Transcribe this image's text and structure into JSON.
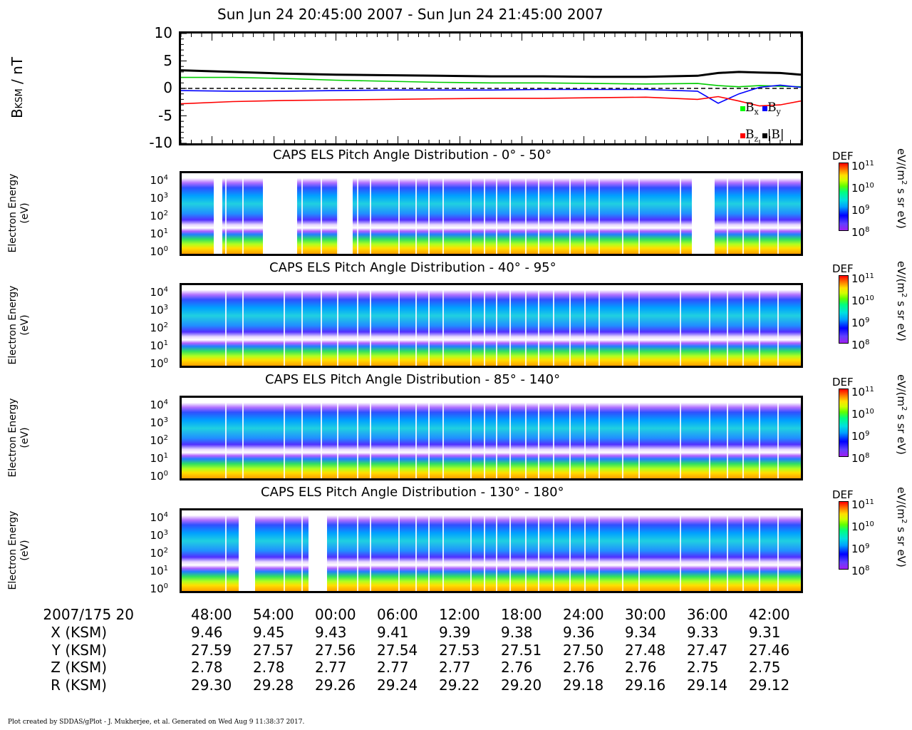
{
  "chart_data": {
    "time_range_title": "Sun Jun 24 20:45:00 2007 - Sun Jun 24 21:45:00 2007",
    "mag_panel": {
      "type": "line",
      "ylabel_main": "B",
      "ylabel_sub": "KSM",
      "ylabel_unit": " / nT",
      "ylim": [
        -10,
        10
      ],
      "y_ticks": [
        "10",
        "5",
        "0",
        "-5",
        "-10"
      ],
      "y_tick_values": [
        10,
        5,
        0,
        -5,
        -10
      ],
      "x_minutes": [
        0,
        5,
        10,
        15,
        20,
        25,
        30,
        35,
        40,
        45,
        50,
        52,
        54,
        56,
        58,
        60
      ],
      "series": [
        {
          "name": "|B|",
          "color": "#000000",
          "values": [
            3.3,
            3.0,
            2.7,
            2.5,
            2.4,
            2.3,
            2.2,
            2.2,
            2.1,
            2.1,
            2.3,
            2.8,
            3.0,
            2.9,
            2.8,
            2.5
          ]
        },
        {
          "name": "B_x",
          "color": "#00cc00",
          "values": [
            2.0,
            2.0,
            1.8,
            1.5,
            1.3,
            1.1,
            1.0,
            1.0,
            0.9,
            0.8,
            0.9,
            0.5,
            0.3,
            0.5,
            0.4,
            0.3
          ]
        },
        {
          "name": "B_y",
          "color": "#0000ff",
          "values": [
            -0.4,
            -0.5,
            -0.5,
            -0.4,
            -0.3,
            -0.3,
            -0.3,
            -0.2,
            -0.2,
            -0.2,
            -0.5,
            -2.7,
            -1.0,
            0.2,
            0.6,
            0.2
          ]
        },
        {
          "name": "B_z",
          "color": "#ff0000",
          "values": [
            -2.8,
            -2.4,
            -2.2,
            -2.1,
            -2.0,
            -1.9,
            -1.8,
            -1.8,
            -1.7,
            -1.6,
            -2.0,
            -1.5,
            -2.3,
            -3.2,
            -3.0,
            -2.3
          ]
        }
      ],
      "zero_line": "dashed",
      "legend": [
        {
          "label": "B",
          "sub": "x",
          "color": "#00ff00"
        },
        {
          "label": "B",
          "sub": "y",
          "color": "#0000ff"
        },
        {
          "label": "B",
          "sub": "z",
          "color": "#ff0000"
        },
        {
          "label": "|B|",
          "sub": "",
          "color": "#000000"
        }
      ]
    },
    "spectrograms": [
      {
        "type": "heatmap",
        "title": "CAPS ELS Pitch Angle Distribution - 0° - 50°",
        "ylabel": "Electron Energy",
        "yunit": "(eV)"
      },
      {
        "type": "heatmap",
        "title": "CAPS ELS Pitch Angle Distribution - 40° - 95°",
        "ylabel": "Electron Energy",
        "yunit": "(eV)"
      },
      {
        "type": "heatmap",
        "title": "CAPS ELS Pitch Angle Distribution - 85° - 140°",
        "ylabel": "Electron Energy",
        "yunit": "(eV)"
      },
      {
        "type": "heatmap",
        "title": "CAPS ELS Pitch Angle Distribution - 130° - 180°",
        "ylabel": "Electron Energy",
        "yunit": "(eV)"
      }
    ],
    "energy_ticks": [
      {
        "base": "10",
        "exp": "4"
      },
      {
        "base": "10",
        "exp": "3"
      },
      {
        "base": "10",
        "exp": "2"
      },
      {
        "base": "10",
        "exp": "1"
      },
      {
        "base": "10",
        "exp": "0"
      }
    ],
    "colorbar": {
      "label": "DEF",
      "unit_pre": "eV/(m",
      "unit_exp": "2",
      "unit_post": " s sr eV)",
      "ticks": [
        {
          "base": "10",
          "exp": "11"
        },
        {
          "base": "10",
          "exp": "10"
        },
        {
          "base": "10",
          "exp": "9"
        },
        {
          "base": "10",
          "exp": "8"
        }
      ],
      "range": [
        100000000.0,
        100000000000.0
      ],
      "scale": "log"
    },
    "x_axis": {
      "start_label": "2007/175 20",
      "rows": [
        {
          "label": "X (KSM)",
          "values": [
            "9.46",
            "9.45",
            "9.43",
            "9.41",
            "9.39",
            "9.38",
            "9.36",
            "9.34",
            "9.33",
            "9.31"
          ]
        },
        {
          "label": "Y (KSM)",
          "values": [
            "27.59",
            "27.57",
            "27.56",
            "27.54",
            "27.53",
            "27.51",
            "27.50",
            "27.48",
            "27.47",
            "27.46"
          ]
        },
        {
          "label": "Z (KSM)",
          "values": [
            "2.78",
            "2.78",
            "2.77",
            "2.77",
            "2.77",
            "2.76",
            "2.76",
            "2.76",
            "2.75",
            "2.75"
          ]
        },
        {
          "label": "R (KSM)",
          "values": [
            "29.30",
            "29.28",
            "29.26",
            "29.24",
            "29.22",
            "29.20",
            "29.18",
            "29.16",
            "29.14",
            "29.12"
          ]
        }
      ],
      "time_labels": [
        "48:00",
        "54:00",
        "00:00",
        "06:00",
        "12:00",
        "18:00",
        "24:00",
        "30:00",
        "36:00",
        "42:00"
      ]
    }
  },
  "footer": "Plot created by SDDAS/gPlot - J. Mukherjee, et al.  Generated on Wed Aug 9 11:38:37 2017."
}
